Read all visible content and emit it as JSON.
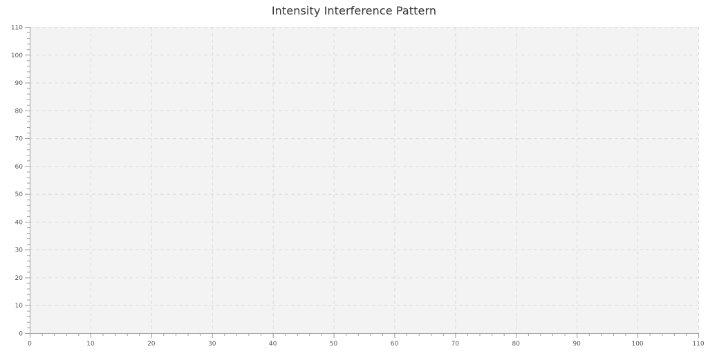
{
  "chart_data": {
    "type": "scatter",
    "title": "Intensity Interference Pattern",
    "xlabel": "",
    "ylabel": "",
    "xlim": [
      0,
      110
    ],
    "ylim": [
      0,
      110
    ],
    "x_major_ticks": [
      0,
      10,
      20,
      30,
      40,
      50,
      60,
      70,
      80,
      90,
      100,
      110
    ],
    "y_major_ticks": [
      0,
      10,
      20,
      30,
      40,
      50,
      60,
      70,
      80,
      90,
      100,
      110
    ],
    "x_minor_step": 2,
    "y_minor_step": 2,
    "grid": true,
    "grid_style": "dashed",
    "legend": "none",
    "series": []
  },
  "colors": {
    "plot_background": "#f3f3f3",
    "grid": "#dcdcdc",
    "axis": "#9a9a9a",
    "title": "#333333",
    "tick_label": "#555555"
  }
}
